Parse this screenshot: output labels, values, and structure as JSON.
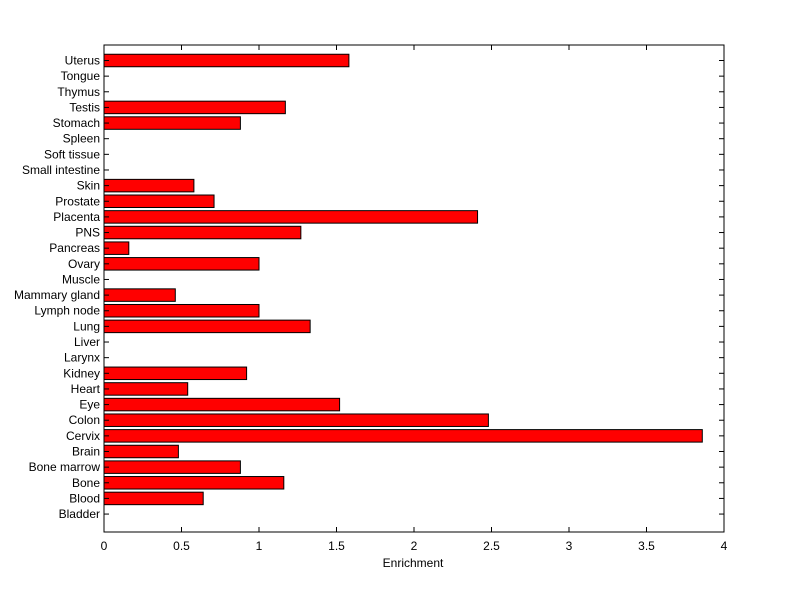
{
  "chart_data": {
    "type": "bar",
    "orientation": "horizontal",
    "title": "",
    "xlabel": "Enrichment",
    "ylabel": "",
    "xlim": [
      0,
      4
    ],
    "xticks": [
      "0",
      "0.5",
      "1",
      "1.5",
      "2",
      "2.5",
      "3",
      "3.5",
      "4"
    ],
    "bar_color": "#ff0000",
    "bar_edge_color": "#000000",
    "grid": false,
    "legend": "none",
    "categories": [
      "Uterus",
      "Tongue",
      "Thymus",
      "Testis",
      "Stomach",
      "Spleen",
      "Soft tissue",
      "Small intestine",
      "Skin",
      "Prostate",
      "Placenta",
      "PNS",
      "Pancreas",
      "Ovary",
      "Muscle",
      "Mammary gland",
      "Lymph node",
      "Lung",
      "Liver",
      "Larynx",
      "Kidney",
      "Heart",
      "Eye",
      "Colon",
      "Cervix",
      "Brain",
      "Bone marrow",
      "Bone",
      "Blood",
      "Bladder"
    ],
    "values": [
      1.58,
      0,
      0,
      1.17,
      0.88,
      0,
      0,
      0,
      0.58,
      0.71,
      2.41,
      1.27,
      0.16,
      1.0,
      0,
      0.46,
      1.0,
      1.33,
      0,
      0,
      0.92,
      0.54,
      1.52,
      2.48,
      3.86,
      0.48,
      0.88,
      1.16,
      0.64,
      0
    ]
  }
}
